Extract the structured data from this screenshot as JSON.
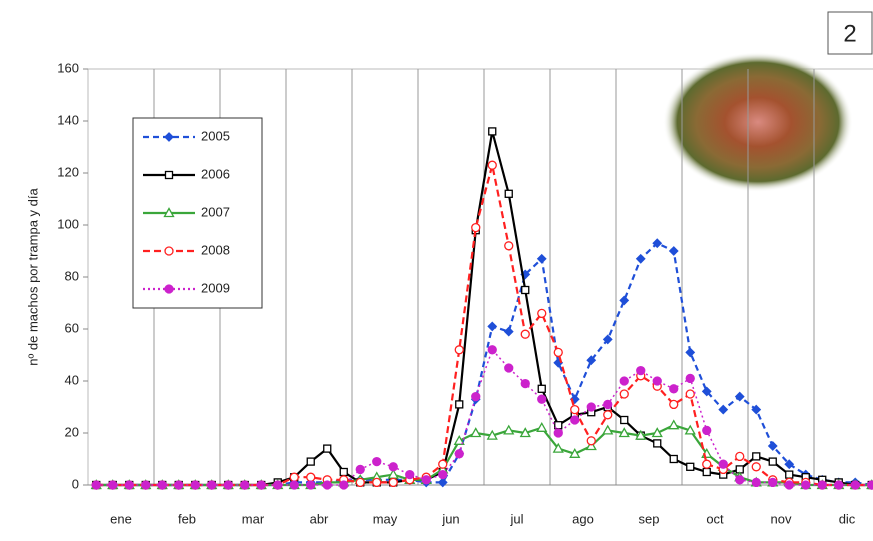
{
  "chart_data": {
    "type": "line",
    "annotation": "2",
    "y_label": "nº de machos por trampa y día",
    "categories": [
      null,
      "ene",
      null,
      null,
      null,
      "feb",
      null,
      null,
      null,
      "mar",
      null,
      null,
      null,
      "abr",
      null,
      null,
      null,
      "may",
      null,
      null,
      null,
      "jun",
      null,
      null,
      null,
      "jul",
      null,
      null,
      null,
      "ago",
      null,
      null,
      null,
      "sep",
      null,
      null,
      null,
      "oct",
      null,
      null,
      null,
      "nov",
      null,
      null,
      null,
      "dic",
      null,
      null
    ],
    "ylim": [
      0,
      160
    ],
    "yticks": [
      0,
      20,
      40,
      60,
      80,
      100,
      120,
      140,
      160
    ],
    "legend": "upper left",
    "series": [
      {
        "name": "2005",
        "color": "#1f4fd8",
        "dash": "6,4",
        "marker": "diamond",
        "values": [
          0,
          0,
          0,
          0,
          0,
          0,
          0,
          0,
          0,
          0,
          0,
          0,
          1,
          1,
          1,
          2,
          2,
          2,
          2,
          2,
          1,
          1,
          12,
          33,
          61,
          59,
          81,
          87,
          47,
          33,
          48,
          56,
          71,
          87,
          93,
          90,
          51,
          36,
          29,
          34,
          29,
          15,
          8,
          4,
          2,
          1,
          1,
          0
        ]
      },
      {
        "name": "2006",
        "color": "#000000",
        "dash": "",
        "marker": "square",
        "values": [
          0,
          0,
          0,
          0,
          0,
          0,
          0,
          0,
          0,
          0,
          0,
          1,
          3,
          9,
          14,
          5,
          1,
          1,
          1,
          2,
          2,
          5,
          31,
          98,
          136,
          112,
          75,
          37,
          23,
          27,
          28,
          30,
          25,
          19,
          16,
          10,
          7,
          5,
          4,
          6,
          11,
          9,
          4,
          3,
          2,
          1,
          0,
          0
        ]
      },
      {
        "name": "2007",
        "color": "#3aa63a",
        "dash": "",
        "marker": "triangle",
        "values": [
          0,
          0,
          0,
          0,
          0,
          0,
          0,
          0,
          0,
          0,
          0,
          0,
          0,
          0,
          1,
          1,
          2,
          3,
          4,
          2,
          2,
          6,
          17,
          20,
          19,
          21,
          20,
          22,
          14,
          12,
          15,
          21,
          20,
          19,
          20,
          23,
          21,
          12,
          7,
          3,
          1,
          1,
          1,
          0,
          0,
          0,
          0,
          0
        ]
      },
      {
        "name": "2008",
        "color": "#ff2020",
        "dash": "7,4",
        "marker": "circle",
        "values": [
          0,
          0,
          0,
          0,
          0,
          0,
          0,
          0,
          0,
          0,
          0,
          0,
          3,
          3,
          2,
          2,
          1,
          1,
          1,
          2,
          3,
          8,
          52,
          99,
          123,
          92,
          58,
          66,
          51,
          29,
          17,
          27,
          35,
          42,
          38,
          31,
          35,
          8,
          6,
          11,
          7,
          2,
          1,
          1,
          0,
          0,
          0,
          0
        ]
      },
      {
        "name": "2009",
        "color": "#cc22cc",
        "dash": "2,3",
        "marker": "dot",
        "values": [
          0,
          0,
          0,
          0,
          0,
          0,
          0,
          0,
          0,
          0,
          0,
          0,
          0,
          0,
          0,
          0,
          6,
          9,
          7,
          4,
          2,
          4,
          12,
          34,
          52,
          45,
          39,
          33,
          20,
          25,
          30,
          31,
          40,
          44,
          40,
          37,
          41,
          21,
          8,
          2,
          1,
          1,
          0,
          0,
          0,
          0,
          0,
          0
        ]
      }
    ]
  }
}
